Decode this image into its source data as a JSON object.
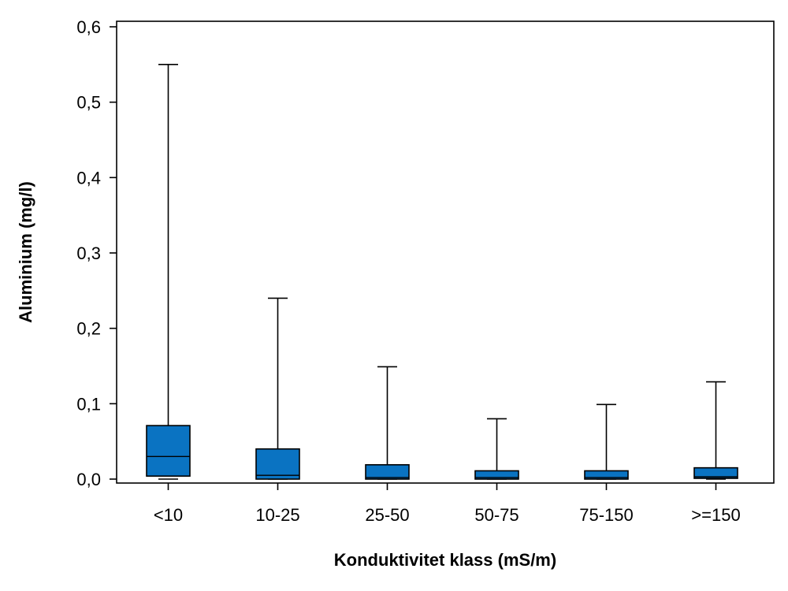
{
  "chart_data": {
    "type": "boxplot",
    "xlabel": "Konduktivitet klass (mS/m)",
    "ylabel": "Aluminium (mg/l)",
    "ylim": [
      0,
      0.6
    ],
    "y_ticks": [
      0.0,
      0.1,
      0.2,
      0.3,
      0.4,
      0.5,
      0.6
    ],
    "y_tick_labels": [
      "0,0",
      "0,1",
      "0,2",
      "0,3",
      "0,4",
      "0,5",
      "0,6"
    ],
    "categories": [
      "<10",
      "10-25",
      "25-50",
      "50-75",
      "75-150",
      ">=150"
    ],
    "boxes": [
      {
        "category": "<10",
        "min": 0.0,
        "q1": 0.004,
        "median": 0.03,
        "q3": 0.071,
        "max": 0.55
      },
      {
        "category": "10-25",
        "min": 0.0,
        "q1": 0.0,
        "median": 0.005,
        "q3": 0.04,
        "max": 0.24
      },
      {
        "category": "25-50",
        "min": 0.0,
        "q1": 0.0,
        "median": 0.002,
        "q3": 0.019,
        "max": 0.149
      },
      {
        "category": "50-75",
        "min": 0.0,
        "q1": 0.0,
        "median": 0.002,
        "q3": 0.011,
        "max": 0.08
      },
      {
        "category": "75-150",
        "min": 0.0,
        "q1": 0.0,
        "median": 0.002,
        "q3": 0.011,
        "max": 0.099
      },
      {
        "category": ">=150",
        "min": 0.0,
        "q1": 0.001,
        "median": 0.003,
        "q3": 0.015,
        "max": 0.129
      }
    ],
    "box_color": "#0A73C2",
    "grid": false,
    "legend": "none"
  }
}
